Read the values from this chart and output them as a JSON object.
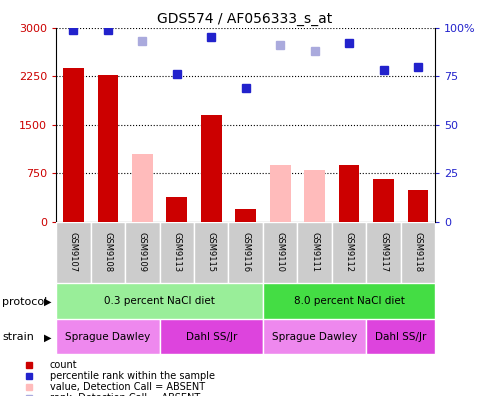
{
  "title": "GDS574 / AF056333_s_at",
  "samples": [
    "GSM9107",
    "GSM9108",
    "GSM9109",
    "GSM9113",
    "GSM9115",
    "GSM9116",
    "GSM9110",
    "GSM9111",
    "GSM9112",
    "GSM9117",
    "GSM9118"
  ],
  "count_values": [
    2370,
    2270,
    null,
    380,
    1650,
    200,
    null,
    null,
    870,
    660,
    490
  ],
  "count_absent": [
    null,
    null,
    1050,
    null,
    null,
    null,
    870,
    800,
    null,
    null,
    null
  ],
  "rank_values": [
    99,
    99,
    null,
    76,
    95,
    69,
    null,
    null,
    92,
    78,
    80
  ],
  "rank_absent": [
    null,
    null,
    93,
    null,
    null,
    null,
    91,
    88,
    null,
    null,
    null
  ],
  "count_color": "#cc0000",
  "count_absent_color": "#ffbbbb",
  "rank_color": "#2222cc",
  "rank_absent_color": "#aaaadd",
  "ylim_left": [
    0,
    3000
  ],
  "ylim_right": [
    0,
    100
  ],
  "yticks_left": [
    0,
    750,
    1500,
    2250,
    3000
  ],
  "ytick_labels_left": [
    "0",
    "750",
    "1500",
    "2250",
    "3000"
  ],
  "yticks_right": [
    0,
    25,
    50,
    75,
    100
  ],
  "ytick_labels_right": [
    "0",
    "25",
    "50",
    "75",
    "100%"
  ],
  "protocol_groups": [
    {
      "label": "0.3 percent NaCl diet",
      "start": 0,
      "end": 5,
      "color": "#99ee99"
    },
    {
      "label": "8.0 percent NaCl diet",
      "start": 6,
      "end": 10,
      "color": "#44dd44"
    }
  ],
  "strain_groups": [
    {
      "label": "Sprague Dawley",
      "start": 0,
      "end": 2,
      "color": "#ee88ee"
    },
    {
      "label": "Dahl SS/Jr",
      "start": 3,
      "end": 5,
      "color": "#dd44dd"
    },
    {
      "label": "Sprague Dawley",
      "start": 6,
      "end": 8,
      "color": "#ee88ee"
    },
    {
      "label": "Dahl SS/Jr",
      "start": 9,
      "end": 10,
      "color": "#dd44dd"
    }
  ],
  "legend_items": [
    {
      "label": "count",
      "color": "#cc0000"
    },
    {
      "label": "percentile rank within the sample",
      "color": "#2222cc"
    },
    {
      "label": "value, Detection Call = ABSENT",
      "color": "#ffbbbb"
    },
    {
      "label": "rank, Detection Call = ABSENT",
      "color": "#aaaadd"
    }
  ],
  "bar_width": 0.6,
  "marker_size": 6,
  "protocol_label": "protocol",
  "strain_label": "strain",
  "tick_bg_color": "#cccccc",
  "fig_bg": "#ffffff"
}
